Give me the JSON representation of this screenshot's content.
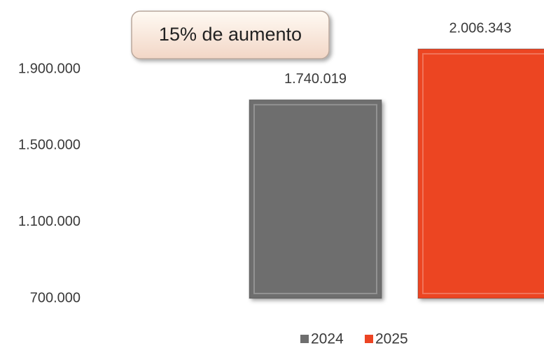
{
  "chart_data": {
    "type": "bar",
    "annotation": "15% de aumento",
    "categories": [
      null
    ],
    "series": [
      {
        "name": "2024",
        "color": "#6e6e6e",
        "values": [
          1740019
        ],
        "value_labels": [
          "1.740.019"
        ]
      },
      {
        "name": "2025",
        "color": "#ec4423",
        "values": [
          2006343
        ],
        "value_labels": [
          "2.006.343"
        ]
      }
    ],
    "ylim": [
      700000,
      2100000
    ],
    "yticks": [
      {
        "value": 700000,
        "label": "700.000"
      },
      {
        "value": 1100000,
        "label": "1.100.000"
      },
      {
        "value": 1500000,
        "label": "1.500.000"
      },
      {
        "value": 1900000,
        "label": "1.900.000"
      }
    ],
    "grid": false,
    "legend": "bottom"
  }
}
